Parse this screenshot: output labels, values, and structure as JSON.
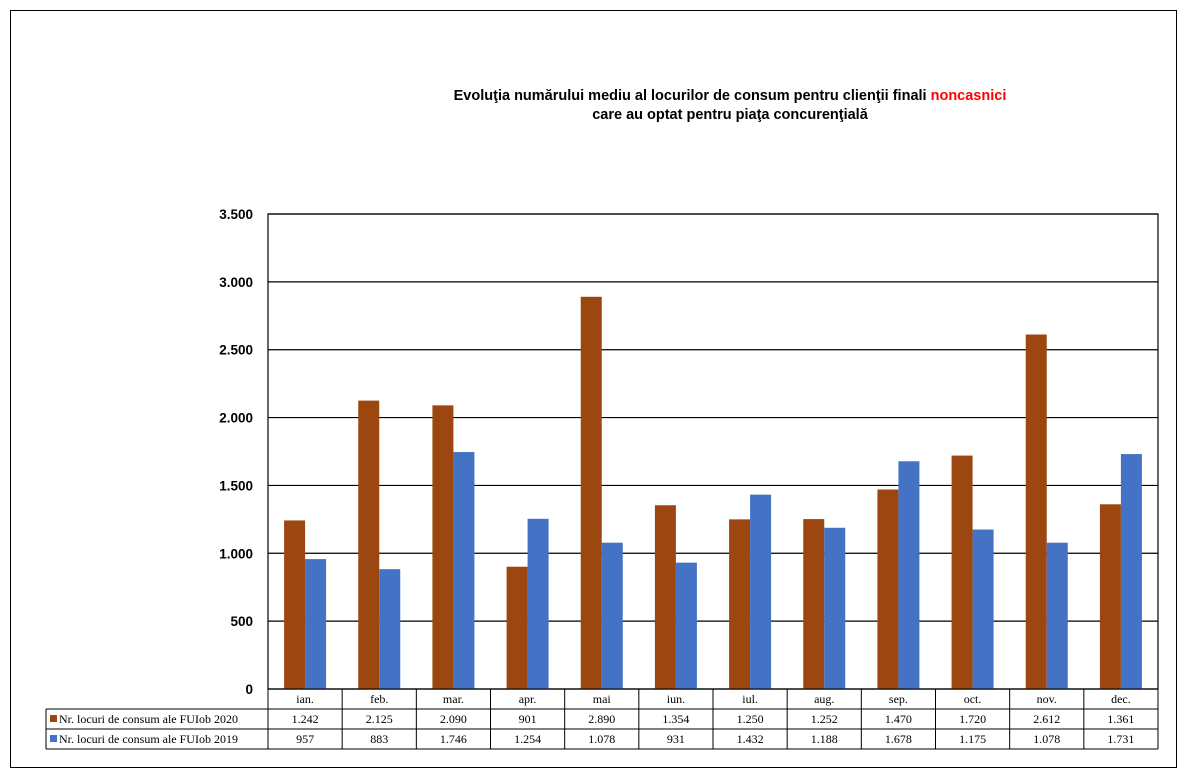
{
  "chart_data": {
    "type": "bar",
    "title_part1": "Evoluţia numărului mediu al locurilor de consum pentru clienţii finali",
    "title_highlight": "noncasnici",
    "title_line2": "care au optat pentru piaţa concurenţială",
    "categories": [
      "ian.",
      "feb.",
      "mar.",
      "apr.",
      "mai",
      "iun.",
      "iul.",
      "aug.",
      "sep.",
      "oct.",
      "nov.",
      "dec."
    ],
    "series": [
      {
        "name": "Nr. locuri de consum ale FUIob 2020",
        "color": "#9C4710",
        "values": [
          1242,
          2125,
          2090,
          901,
          2890,
          1354,
          1250,
          1252,
          1470,
          1720,
          2612,
          1361
        ],
        "labels": [
          "1.242",
          "2.125",
          "2.090",
          "901",
          "2.890",
          "1.354",
          "1.250",
          "1.252",
          "1.470",
          "1.720",
          "2.612",
          "1.361"
        ]
      },
      {
        "name": "Nr. locuri de consum ale FUIob 2019",
        "color": "#4472C4",
        "values": [
          957,
          883,
          1746,
          1254,
          1078,
          931,
          1432,
          1188,
          1678,
          1175,
          1078,
          1731
        ],
        "labels": [
          "957",
          "883",
          "1.746",
          "1.254",
          "1.078",
          "931",
          "1.432",
          "1.188",
          "1.678",
          "1.175",
          "1.078",
          "1.731"
        ]
      }
    ],
    "ylim": [
      0,
      3500
    ],
    "yticks": [
      0,
      500,
      1000,
      1500,
      2000,
      2500,
      3000,
      3500
    ],
    "ytick_labels": [
      "0",
      "500",
      "1.000",
      "1.500",
      "2.000",
      "2.500",
      "3.000",
      "3.500"
    ],
    "grid": true,
    "legend": "data-table"
  }
}
